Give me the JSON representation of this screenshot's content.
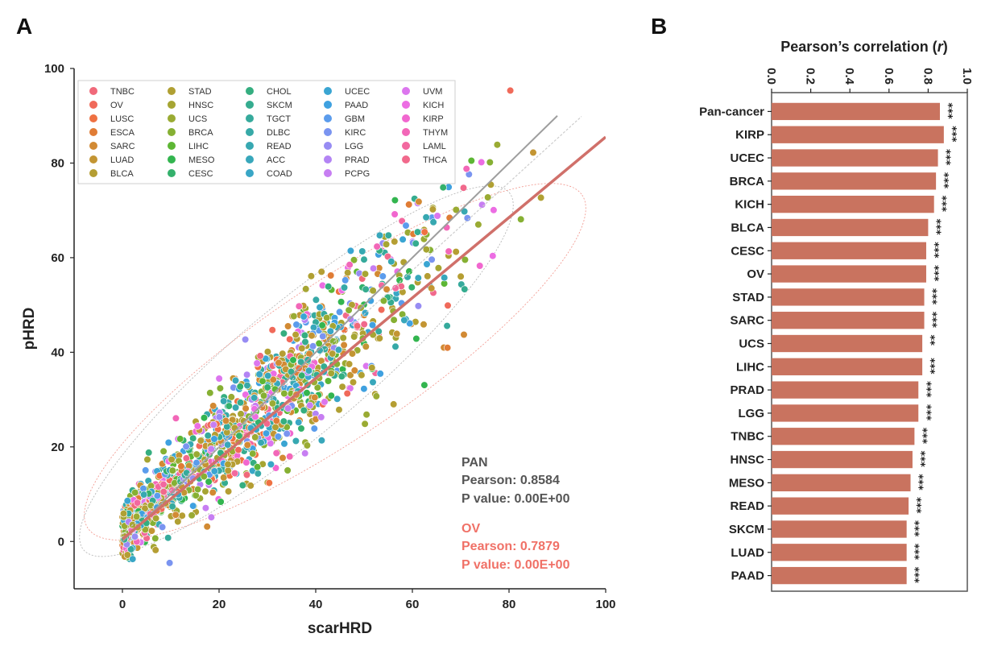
{
  "panel_a": {
    "label": "A",
    "xlabel": "scarHRD",
    "ylabel": "pHRD",
    "pan": {
      "name": "PAN",
      "pearson": "Pearson: 0.8584",
      "pvalue": "P value: 0.00E+00",
      "color": "#555555"
    },
    "ov": {
      "name": "OV",
      "pearson": "Pearson: 0.7879",
      "pvalue": "P value: 0.00E+00",
      "color": "#f07167"
    }
  },
  "panel_b": {
    "label": "B",
    "title": "Pearson’s correlation (r)"
  },
  "chart_data": [
    {
      "type": "scatter",
      "xlabel": "scarHRD",
      "ylabel": "pHRD",
      "xlim": [
        -10,
        100
      ],
      "ylim": [
        -10,
        100
      ],
      "xticks": [
        0,
        20,
        40,
        60,
        80,
        100
      ],
      "yticks": [
        0,
        20,
        40,
        60,
        80,
        100
      ],
      "grid": false,
      "legend_position": "top-left",
      "legend": [
        {
          "name": "TNBC",
          "color": "#f0697a"
        },
        {
          "name": "OV",
          "color": "#f06a5a"
        },
        {
          "name": "LUSC",
          "color": "#ef7142"
        },
        {
          "name": "ESCA",
          "color": "#e07c35"
        },
        {
          "name": "SARC",
          "color": "#d28a34"
        },
        {
          "name": "LUAD",
          "color": "#c39533"
        },
        {
          "name": "BLCA",
          "color": "#b59e33"
        },
        {
          "name": "STAD",
          "color": "#b0a033"
        },
        {
          "name": "HNSC",
          "color": "#a6a533"
        },
        {
          "name": "UCS",
          "color": "#9aab33"
        },
        {
          "name": "BRCA",
          "color": "#86b033"
        },
        {
          "name": "LIHC",
          "color": "#5db634"
        },
        {
          "name": "MESO",
          "color": "#33b54f"
        },
        {
          "name": "CESC",
          "color": "#34b16c"
        },
        {
          "name": "CHOL",
          "color": "#35ae80"
        },
        {
          "name": "SKCM",
          "color": "#35ac8f"
        },
        {
          "name": "TGCT",
          "color": "#36aa9c"
        },
        {
          "name": "DLBC",
          "color": "#37a9a7"
        },
        {
          "name": "READ",
          "color": "#37a8b1"
        },
        {
          "name": "ACC",
          "color": "#38a7bb"
        },
        {
          "name": "COAD",
          "color": "#39a6c6"
        },
        {
          "name": "UCEC",
          "color": "#3aa5d2"
        },
        {
          "name": "PAAD",
          "color": "#3fa1e0"
        },
        {
          "name": "GBM",
          "color": "#5b9cec"
        },
        {
          "name": "KIRC",
          "color": "#7a94f0"
        },
        {
          "name": "LGG",
          "color": "#978cf3"
        },
        {
          "name": "PRAD",
          "color": "#b384f4"
        },
        {
          "name": "PCPG",
          "color": "#c77ef2"
        },
        {
          "name": "UVM",
          "color": "#dc76ee"
        },
        {
          "name": "KICH",
          "color": "#ec6de3"
        },
        {
          "name": "KIRP",
          "color": "#f167cf"
        },
        {
          "name": "THYM",
          "color": "#f267b8"
        },
        {
          "name": "LAML",
          "color": "#f2689f"
        },
        {
          "name": "THCA",
          "color": "#f1698c"
        }
      ],
      "pan_regression": {
        "slope": 0.93,
        "intercept": 1.5,
        "x_range": [
          0,
          95
        ],
        "color": "#cccccc"
      },
      "ov_regression": {
        "slope": 0.85,
        "intercept": 0.5,
        "x_range": [
          0,
          100
        ],
        "color": "#d0706a"
      },
      "identity_line": {
        "x_range": [
          0,
          90
        ],
        "color": "#9e9e9e"
      },
      "annotations": [
        "PAN",
        "Pearson: 0.8584",
        "P value: 0.00E+00",
        "OV",
        "Pearson: 0.7879",
        "P value: 0.00E+00"
      ],
      "points_note": "Several thousand points; distribution approximated along the regression band"
    },
    {
      "type": "bar",
      "orientation": "horizontal",
      "title": "Pearson’s correlation (r)",
      "xlim": [
        0,
        1.0
      ],
      "xticks": [
        "0.0",
        "0.2",
        "0.4",
        "0.6",
        "0.8",
        "1.0"
      ],
      "bar_color": "#c9735f",
      "categories": [
        "Pan-cancer",
        "KIRP",
        "UCEC",
        "BRCA",
        "KICH",
        "BLCA",
        "CESC",
        "OV",
        "STAD",
        "SARC",
        "UCS",
        "LIHC",
        "PRAD",
        "LGG",
        "TNBC",
        "HNSC",
        "MESO",
        "READ",
        "SKCM",
        "LUAD",
        "PAAD"
      ],
      "values": [
        0.86,
        0.88,
        0.85,
        0.84,
        0.83,
        0.8,
        0.79,
        0.79,
        0.78,
        0.78,
        0.77,
        0.77,
        0.75,
        0.75,
        0.73,
        0.72,
        0.71,
        0.7,
        0.69,
        0.69,
        0.69
      ],
      "significance": [
        "***",
        "***",
        "***",
        "***",
        "***",
        "***",
        "***",
        "***",
        "***",
        "***",
        "**",
        "***",
        "***",
        "***",
        "***",
        "***",
        "***",
        "***",
        "***",
        "***",
        "***"
      ]
    }
  ]
}
